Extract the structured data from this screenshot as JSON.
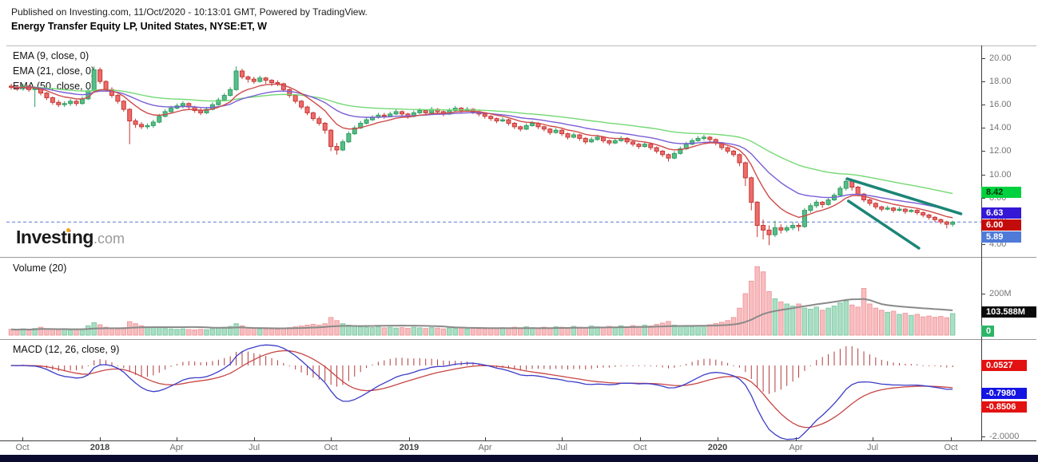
{
  "header": {
    "published_line": "Published on Investing.com, 11/Oct/2020 - 10:13:01 GMT, Powered by TradingView.",
    "title_line": "Energy Transfer Equity LP, United States, NYSE:ET, W"
  },
  "watermark": {
    "p1": "Invest",
    "p2": "i",
    "p3": "ng",
    "p4": ".com"
  },
  "price_panel": {
    "indicator_labels": [
      "EMA (9, close, 0)",
      "EMA (21, close, 0)",
      "EMA (50, close, 0)"
    ],
    "price_chips": [
      {
        "text": "8.42",
        "bg": "#00d13f",
        "fg": "#00320a"
      },
      {
        "text": "6.63",
        "bg": "#3418d6",
        "fg": "#ffffff"
      },
      {
        "text": "6.00",
        "bg": "#c40b0b",
        "fg": "#ffffff"
      },
      {
        "text": "5.89",
        "bg": "#4f7ad8",
        "fg": "#ffffff"
      }
    ]
  },
  "volume_panel": {
    "label": "Volume (20)",
    "chips": [
      {
        "text": "103.588M",
        "bg": "#0a0a0a",
        "fg": "#ffffff"
      },
      {
        "text": "0",
        "bg": "#2cb567",
        "fg": "#ffffff"
      }
    ]
  },
  "macd_panel": {
    "label": "MACD (12, 26, close, 9)",
    "chips": [
      {
        "text": "0.0527",
        "bg": "#e31212",
        "fg": "#ffffff"
      },
      {
        "text": "-0.7980",
        "bg": "#1414e3",
        "fg": "#ffffff"
      },
      {
        "text": "-0.8506",
        "bg": "#e31212",
        "fg": "#ffffff"
      }
    ]
  },
  "chart_data": {
    "type": "candlestick",
    "symbol": "NYSE:ET",
    "interval": "W",
    "title": "Energy Transfer Equity LP, United States, NYSE:ET, W",
    "price_axis": {
      "ticks": [
        "20.00",
        "18.00",
        "16.00",
        "14.00",
        "12.00",
        "10.00",
        "8.00",
        "6.00",
        "4.00"
      ],
      "range": [
        3.0,
        21.0
      ]
    },
    "volume_axis": {
      "ticks": [
        "200M"
      ],
      "range_m": [
        0,
        380
      ]
    },
    "macd_axis": {
      "ticks": [
        "-2.0000"
      ],
      "range": [
        -2.1,
        0.65
      ]
    },
    "time_axis": {
      "ticks": [
        {
          "label": "Oct",
          "year": false
        },
        {
          "label": "2018",
          "year": true
        },
        {
          "label": "Apr",
          "year": false
        },
        {
          "label": "Jul",
          "year": false
        },
        {
          "label": "Oct",
          "year": false
        },
        {
          "label": "2019",
          "year": true
        },
        {
          "label": "Apr",
          "year": false
        },
        {
          "label": "Jul",
          "year": false
        },
        {
          "label": "Oct",
          "year": false
        },
        {
          "label": "2020",
          "year": true
        },
        {
          "label": "Apr",
          "year": false
        },
        {
          "label": "Jul",
          "year": false
        },
        {
          "label": "Oct",
          "year": false
        }
      ]
    },
    "indicators": {
      "ema_periods": [
        9,
        21,
        50
      ],
      "volume_ma_period": 20,
      "macd_params": [
        12,
        26,
        9
      ]
    },
    "last_values": {
      "close": 5.89,
      "ema9": 6.0,
      "ema21": 6.63,
      "ema50": 8.42,
      "volume": "103.588M",
      "macd": -0.798,
      "signal": -0.8506,
      "hist": 0.0527
    },
    "dashed_level": 5.89,
    "trendlines": [
      {
        "w1": 141.2,
        "p1": 9.62,
        "w2": 160.4,
        "p2": 6.6
      },
      {
        "w1": 141.4,
        "p1": 7.7,
        "w2": 153.3,
        "p2": 3.64
      }
    ],
    "ohlc": [
      [
        17.6,
        17.8,
        17.3,
        17.5
      ],
      [
        17.5,
        17.7,
        17.2,
        17.4
      ],
      [
        17.4,
        17.8,
        17.2,
        17.6
      ],
      [
        17.6,
        17.7,
        17.1,
        17.3
      ],
      [
        17.3,
        17.6,
        15.8,
        17.4
      ],
      [
        17.4,
        17.5,
        16.8,
        17.0
      ],
      [
        17.0,
        17.1,
        16.4,
        16.6
      ],
      [
        16.6,
        16.7,
        16.0,
        16.2
      ],
      [
        16.2,
        16.4,
        15.8,
        16.0
      ],
      [
        16.0,
        16.3,
        15.8,
        16.1
      ],
      [
        16.1,
        16.5,
        15.9,
        16.3
      ],
      [
        16.3,
        16.4,
        15.9,
        16.1
      ],
      [
        16.1,
        16.7,
        16.0,
        16.5
      ],
      [
        16.5,
        17.4,
        16.4,
        17.2
      ],
      [
        17.2,
        19.3,
        17.0,
        19.0
      ],
      [
        19.0,
        19.2,
        17.8,
        18.0
      ],
      [
        18.0,
        18.1,
        17.1,
        17.3
      ],
      [
        17.3,
        17.5,
        16.6,
        16.8
      ],
      [
        16.8,
        16.9,
        16.1,
        16.3
      ],
      [
        16.3,
        16.4,
        15.4,
        15.6
      ],
      [
        15.6,
        15.7,
        12.6,
        14.6
      ],
      [
        14.6,
        14.8,
        14.0,
        14.3
      ],
      [
        14.3,
        14.5,
        13.9,
        14.1
      ],
      [
        14.1,
        14.4,
        13.9,
        14.2
      ],
      [
        14.2,
        14.7,
        14.0,
        14.5
      ],
      [
        14.5,
        15.2,
        14.4,
        15.0
      ],
      [
        15.0,
        15.6,
        14.9,
        15.4
      ],
      [
        15.4,
        15.9,
        15.3,
        15.7
      ],
      [
        15.7,
        16.1,
        15.6,
        15.9
      ],
      [
        15.9,
        16.3,
        15.7,
        16.1
      ],
      [
        16.1,
        16.2,
        15.6,
        15.8
      ],
      [
        15.8,
        15.9,
        15.3,
        15.5
      ],
      [
        15.5,
        15.7,
        15.1,
        15.3
      ],
      [
        15.3,
        15.8,
        15.2,
        15.6
      ],
      [
        15.6,
        16.2,
        15.5,
        16.0
      ],
      [
        16.0,
        16.6,
        15.9,
        16.4
      ],
      [
        16.4,
        17.0,
        16.3,
        16.8
      ],
      [
        16.8,
        17.5,
        16.7,
        17.3
      ],
      [
        17.3,
        19.3,
        17.2,
        18.9
      ],
      [
        18.9,
        19.1,
        18.2,
        18.4
      ],
      [
        18.4,
        18.5,
        17.9,
        18.2
      ],
      [
        18.2,
        18.4,
        17.8,
        18.0
      ],
      [
        18.0,
        18.5,
        17.9,
        18.3
      ],
      [
        18.3,
        18.4,
        17.8,
        18.1
      ],
      [
        18.1,
        18.2,
        17.6,
        17.9
      ],
      [
        17.9,
        18.1,
        17.6,
        17.8
      ],
      [
        17.8,
        17.9,
        17.1,
        17.3
      ],
      [
        17.3,
        17.4,
        16.6,
        16.8
      ],
      [
        16.8,
        16.9,
        16.1,
        16.3
      ],
      [
        16.3,
        16.4,
        15.6,
        15.8
      ],
      [
        15.8,
        15.9,
        15.1,
        15.3
      ],
      [
        15.3,
        15.4,
        14.6,
        14.8
      ],
      [
        14.8,
        15.0,
        14.2,
        14.4
      ],
      [
        14.4,
        14.5,
        13.5,
        13.8
      ],
      [
        13.8,
        13.9,
        12.0,
        12.4
      ],
      [
        12.4,
        12.7,
        11.7,
        12.1
      ],
      [
        12.1,
        13.0,
        12.0,
        12.8
      ],
      [
        12.8,
        13.7,
        12.7,
        13.5
      ],
      [
        13.5,
        14.2,
        13.4,
        14.0
      ],
      [
        14.0,
        14.6,
        13.9,
        14.4
      ],
      [
        14.4,
        14.9,
        14.3,
        14.7
      ],
      [
        14.7,
        15.1,
        14.6,
        14.9
      ],
      [
        14.9,
        15.3,
        14.8,
        15.1
      ],
      [
        15.1,
        15.3,
        14.8,
        15.0
      ],
      [
        15.0,
        15.4,
        14.9,
        15.2
      ],
      [
        15.2,
        15.6,
        15.1,
        15.4
      ],
      [
        15.4,
        15.5,
        15.0,
        15.2
      ],
      [
        15.2,
        15.3,
        14.8,
        15.0
      ],
      [
        15.0,
        15.5,
        14.9,
        15.3
      ],
      [
        15.3,
        15.7,
        15.2,
        15.5
      ],
      [
        15.5,
        15.6,
        15.1,
        15.3
      ],
      [
        15.3,
        15.8,
        15.2,
        15.6
      ],
      [
        15.6,
        15.7,
        15.2,
        15.4
      ],
      [
        15.4,
        15.5,
        15.0,
        15.2
      ],
      [
        15.2,
        15.7,
        15.1,
        15.5
      ],
      [
        15.5,
        15.9,
        15.4,
        15.7
      ],
      [
        15.7,
        15.8,
        15.3,
        15.5
      ],
      [
        15.5,
        15.8,
        15.4,
        15.6
      ],
      [
        15.6,
        15.7,
        15.2,
        15.4
      ],
      [
        15.4,
        15.5,
        15.0,
        15.2
      ],
      [
        15.2,
        15.3,
        14.8,
        15.0
      ],
      [
        15.0,
        15.1,
        14.6,
        14.8
      ],
      [
        14.8,
        14.9,
        14.4,
        14.6
      ],
      [
        14.6,
        14.9,
        14.5,
        14.7
      ],
      [
        14.7,
        14.8,
        14.2,
        14.4
      ],
      [
        14.4,
        14.5,
        13.9,
        14.1
      ],
      [
        14.1,
        14.2,
        13.7,
        13.9
      ],
      [
        13.9,
        14.4,
        13.8,
        14.2
      ],
      [
        14.2,
        14.6,
        14.1,
        14.4
      ],
      [
        14.4,
        14.5,
        13.9,
        14.1
      ],
      [
        14.1,
        14.2,
        13.7,
        13.9
      ],
      [
        13.9,
        14.0,
        13.4,
        13.6
      ],
      [
        13.6,
        14.0,
        13.5,
        13.8
      ],
      [
        13.8,
        13.9,
        13.3,
        13.5
      ],
      [
        13.5,
        13.6,
        13.0,
        13.2
      ],
      [
        13.2,
        13.6,
        13.1,
        13.4
      ],
      [
        13.4,
        13.5,
        12.9,
        13.1
      ],
      [
        13.1,
        13.2,
        12.6,
        12.8
      ],
      [
        12.8,
        13.2,
        12.7,
        13.0
      ],
      [
        13.0,
        13.4,
        12.9,
        13.2
      ],
      [
        13.2,
        13.3,
        12.7,
        12.9
      ],
      [
        12.9,
        13.0,
        12.5,
        12.7
      ],
      [
        12.7,
        13.1,
        12.6,
        12.9
      ],
      [
        12.9,
        13.3,
        12.8,
        13.1
      ],
      [
        13.1,
        13.2,
        12.6,
        12.8
      ],
      [
        12.8,
        12.9,
        12.4,
        12.6
      ],
      [
        12.6,
        12.7,
        12.2,
        12.4
      ],
      [
        12.4,
        12.8,
        12.3,
        12.6
      ],
      [
        12.6,
        12.7,
        12.1,
        12.3
      ],
      [
        12.3,
        12.4,
        11.8,
        12.0
      ],
      [
        12.0,
        12.1,
        11.5,
        11.7
      ],
      [
        11.7,
        11.8,
        11.1,
        11.4
      ],
      [
        11.4,
        12.0,
        11.3,
        11.8
      ],
      [
        11.8,
        12.4,
        11.7,
        12.2
      ],
      [
        12.2,
        12.8,
        12.1,
        12.6
      ],
      [
        12.6,
        13.1,
        12.5,
        12.9
      ],
      [
        12.9,
        13.3,
        12.8,
        13.1
      ],
      [
        13.1,
        13.4,
        12.9,
        13.2
      ],
      [
        13.2,
        13.3,
        12.8,
        13.0
      ],
      [
        13.0,
        13.1,
        12.5,
        12.7
      ],
      [
        12.7,
        12.8,
        12.1,
        12.3
      ],
      [
        12.3,
        12.4,
        11.8,
        12.0
      ],
      [
        12.0,
        12.1,
        11.5,
        11.7
      ],
      [
        11.7,
        11.8,
        10.7,
        11.0
      ],
      [
        11.0,
        11.1,
        9.0,
        9.7
      ],
      [
        9.7,
        9.8,
        6.9,
        7.6
      ],
      [
        7.6,
        7.7,
        4.6,
        5.6
      ],
      [
        5.6,
        6.1,
        4.4,
        5.2
      ],
      [
        5.2,
        5.6,
        3.9,
        4.8
      ],
      [
        4.8,
        6.0,
        4.6,
        5.4
      ],
      [
        5.4,
        5.7,
        4.9,
        5.2
      ],
      [
        5.2,
        5.6,
        5.0,
        5.4
      ],
      [
        5.4,
        5.9,
        5.2,
        5.6
      ],
      [
        5.6,
        5.8,
        5.1,
        5.5
      ],
      [
        5.5,
        7.1,
        5.4,
        6.9
      ],
      [
        6.9,
        7.5,
        6.7,
        7.3
      ],
      [
        7.3,
        7.8,
        7.1,
        7.6
      ],
      [
        7.6,
        7.7,
        7.1,
        7.4
      ],
      [
        7.4,
        8.0,
        7.3,
        7.8
      ],
      [
        7.8,
        8.4,
        7.7,
        8.2
      ],
      [
        8.2,
        9.0,
        8.1,
        8.8
      ],
      [
        8.8,
        9.7,
        8.6,
        9.4
      ],
      [
        9.4,
        9.5,
        8.6,
        8.9
      ],
      [
        8.9,
        9.0,
        8.1,
        8.3
      ],
      [
        8.3,
        8.4,
        7.6,
        7.8
      ],
      [
        7.8,
        7.9,
        7.3,
        7.5
      ],
      [
        7.5,
        7.6,
        7.0,
        7.2
      ],
      [
        7.2,
        7.3,
        6.8,
        7.0
      ],
      [
        7.0,
        7.3,
        6.9,
        7.1
      ],
      [
        7.1,
        7.2,
        6.7,
        6.9
      ],
      [
        6.9,
        7.2,
        6.8,
        7.0
      ],
      [
        7.0,
        7.1,
        6.6,
        6.8
      ],
      [
        6.8,
        7.0,
        6.7,
        6.9
      ],
      [
        6.9,
        7.0,
        6.5,
        6.7
      ],
      [
        6.7,
        6.8,
        6.3,
        6.5
      ],
      [
        6.5,
        6.6,
        6.1,
        6.3
      ],
      [
        6.3,
        6.4,
        5.9,
        6.1
      ],
      [
        6.1,
        6.2,
        5.7,
        5.9
      ],
      [
        5.9,
        6.0,
        5.35,
        5.7
      ],
      [
        5.7,
        6.0,
        5.5,
        5.89
      ]
    ],
    "volumes_m": [
      28,
      25,
      30,
      24,
      32,
      38,
      30,
      28,
      26,
      30,
      24,
      26,
      30,
      45,
      60,
      50,
      38,
      34,
      30,
      36,
      65,
      55,
      45,
      40,
      38,
      36,
      32,
      30,
      28,
      30,
      27,
      25,
      28,
      26,
      30,
      34,
      38,
      42,
      55,
      45,
      35,
      32,
      30,
      28,
      30,
      28,
      32,
      36,
      40,
      44,
      48,
      52,
      48,
      55,
      85,
      70,
      55,
      48,
      44,
      40,
      38,
      36,
      40,
      35,
      38,
      34,
      36,
      33,
      38,
      35,
      32,
      36,
      34,
      30,
      34,
      32,
      35,
      30,
      33,
      31,
      30,
      34,
      32,
      36,
      33,
      38,
      35,
      40,
      36,
      34,
      38,
      35,
      40,
      38,
      35,
      42,
      38,
      36,
      44,
      40,
      38,
      42,
      38,
      45,
      40,
      46,
      42,
      48,
      44,
      52,
      58,
      66,
      48,
      45,
      42,
      40,
      44,
      46,
      50,
      56,
      62,
      70,
      85,
      130,
      200,
      260,
      330,
      305,
      210,
      175,
      160,
      150,
      140,
      150,
      130,
      125,
      135,
      120,
      130,
      140,
      155,
      165,
      145,
      135,
      225,
      150,
      130,
      120,
      110,
      115,
      100,
      105,
      95,
      100,
      88,
      92,
      86,
      90,
      84,
      103.588
    ],
    "colors": {
      "up_border": "#2f9e5f",
      "up_fill": "#57bd8a",
      "down_border": "#c43836",
      "down_fill": "#ef6b69",
      "vol_up_fill": "#a9dfc4",
      "vol_up_border": "#84c8a5",
      "vol_down_fill": "#f8bdc0",
      "vol_down_border": "#ef9d9f",
      "ema9": "#cf4a4a",
      "ema21": "#7a5fd6",
      "ema50": "#74d974",
      "vol_ma": "#8a8a8a",
      "macd_line": "#3c3cc8",
      "signal_line": "#c84444",
      "hist": "#b23b3b",
      "trendline": "#1b8576",
      "dashed_line": "#5b79d6"
    }
  }
}
